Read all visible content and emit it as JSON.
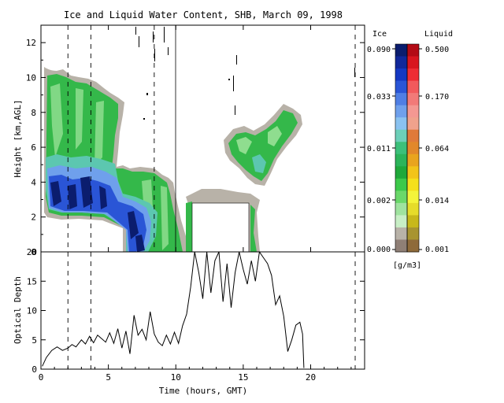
{
  "title": "Ice and Liquid Water Content, SHB, March 09, 1998",
  "chart_data": [
    {
      "type": "heatmap",
      "ylabel": "Height [km,AGL]",
      "xlim": [
        0,
        24
      ],
      "ylim": [
        0,
        13
      ],
      "yticks": [
        0,
        2,
        4,
        6,
        8,
        10,
        12
      ],
      "grid": false,
      "dashed_lines_x_hours": [
        2.0,
        3.7,
        8.4,
        23.3
      ],
      "legend": {
        "ice_header": "Ice",
        "liquid_header": "Liquid",
        "units": "[g/m3]",
        "ice_ticks": [
          "0.090",
          "0.033",
          "0.011",
          "0.002",
          "0.000"
        ],
        "liquid_ticks": [
          "0.500",
          "0.170",
          "0.064",
          "0.014",
          "0.001"
        ],
        "ice_colors": [
          "#0b1d6e",
          "#11289a",
          "#1438c2",
          "#2a55d6",
          "#4f7ee4",
          "#6fa0ec",
          "#8ac2f0",
          "#6ccfb8",
          "#3cc07a",
          "#2cb45a",
          "#1fa83a",
          "#3cc94a",
          "#6ad86a",
          "#9fe39f",
          "#c8efc6",
          "#b8b2a8",
          "#8f7f76"
        ],
        "liquid_colors": [
          "#b30b15",
          "#d8161f",
          "#ee2d34",
          "#f25a5c",
          "#f27a78",
          "#f49892",
          "#f0a28c",
          "#e07a3a",
          "#e2882a",
          "#e9a41e",
          "#f2c419",
          "#f5e01b",
          "#f4f43a",
          "#e6dc2a",
          "#c8b81a",
          "#a89430",
          "#8e6a3a"
        ]
      },
      "regions": {
        "cloud_main_top_km": 10.0,
        "cloud_main_base_km": 2.2,
        "ice_max_band_km": [
          2.5,
          4.5
        ],
        "upper_cloud_hours": [
          13.5,
          19.5
        ],
        "upper_cloud_km": [
          4.5,
          7.8
        ],
        "blank_box_hours": [
          11,
          15.5
        ],
        "blank_box_km": [
          0,
          3.2
        ]
      }
    },
    {
      "type": "line",
      "xlabel": "Time (hours, GMT)",
      "ylabel": "Optical Depth",
      "xlim": [
        0,
        24
      ],
      "ylim": [
        0,
        20
      ],
      "xticks": [
        0,
        5,
        10,
        15,
        20
      ],
      "yticks": [
        0,
        5,
        10,
        15,
        20
      ],
      "dashed_lines_x_hours": [
        2.0,
        3.7,
        23.3
      ],
      "series": [
        {
          "x": [
            0.1,
            0.4,
            0.8,
            1.2,
            1.6,
            2.0,
            2.3,
            2.6,
            3.0,
            3.3,
            3.6,
            3.9,
            4.2,
            4.5,
            4.8,
            5.1,
            5.4,
            5.7,
            6.0,
            6.3,
            6.6,
            6.9,
            7.2,
            7.5,
            7.8,
            8.1,
            8.4,
            8.7,
            9.0,
            9.3,
            9.6,
            9.9,
            10.2,
            10.5,
            10.8,
            11.1,
            11.4,
            11.7,
            12.0,
            12.3,
            12.6,
            12.9,
            13.2,
            13.5,
            13.8,
            14.1,
            14.4,
            14.7,
            15.0,
            15.3,
            15.6,
            15.9,
            16.2,
            16.5,
            16.8,
            17.1,
            17.4,
            17.7,
            18.0,
            18.3,
            18.6,
            18.9,
            19.2,
            19.4,
            19.5
          ],
          "y": [
            0.5,
            2.0,
            3.2,
            3.8,
            3.2,
            3.6,
            4.2,
            3.8,
            5.0,
            4.3,
            5.6,
            4.5,
            5.8,
            5.2,
            4.6,
            6.2,
            4.4,
            6.9,
            3.6,
            6.5,
            2.6,
            9.2,
            5.8,
            6.8,
            5.0,
            9.8,
            6.0,
            4.6,
            4.0,
            5.8,
            4.3,
            6.3,
            4.4,
            7.4,
            9.4,
            14.0,
            20.0,
            16.5,
            12.0,
            20.0,
            13.0,
            18.5,
            20.0,
            11.5,
            18.0,
            10.5,
            16.5,
            20.0,
            17.0,
            14.5,
            18.5,
            15.0,
            20.0,
            19.0,
            18.0,
            16.0,
            11.0,
            12.5,
            9.0,
            3.0,
            5.0,
            7.5,
            8.0,
            6.0,
            0.2
          ]
        }
      ]
    }
  ]
}
